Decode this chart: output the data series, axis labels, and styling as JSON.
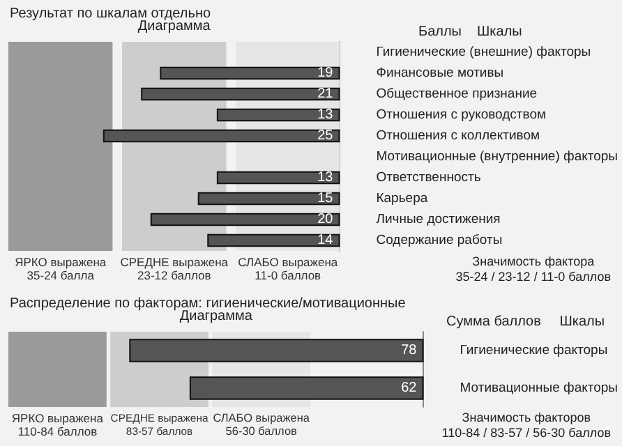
{
  "chart_data": [
    {
      "type": "bar",
      "orientation": "horizontal",
      "title": "Результат по шкалам отдельно",
      "xlabel": "Диаграмма",
      "ylabel": "Шкалы",
      "categories": [
        "Гигиенические (внешние) факторы",
        "Финансовые мотивы",
        "Общественное признание",
        "Отношения с руководством",
        "Отношения с коллективом",
        "Мотивационные (внутренние) факторы",
        "Ответственность",
        "Карьера",
        "Личные достижения",
        "Содержание работы"
      ],
      "values": [
        null,
        19,
        21,
        13,
        25,
        null,
        13,
        15,
        20,
        14
      ],
      "color": "#555555",
      "data_labels": true,
      "xlim": [
        35,
        0
      ],
      "tick_labels": "y",
      "bands": [
        {
          "axis": "x",
          "from": 35,
          "to": 24,
          "label": "ЯРКО выражена\n35-24 балла",
          "color": "#9a9a9a"
        },
        {
          "axis": "x",
          "from": 23,
          "to": 12,
          "label": "СРЕДНЕ выражена\n23-12 баллов",
          "color": "#cdcdcd"
        },
        {
          "axis": "x",
          "from": 11,
          "to": 0,
          "label": "СЛАБО выражена\n11-0 баллов",
          "color": "#e6e6e6"
        }
      ],
      "annotations": [
        "Баллы",
        "Значимость фактора\n35-24 / 23-12 / 11-0 баллов"
      ]
    },
    {
      "type": "bar",
      "orientation": "horizontal",
      "title": "Распределение по факторам: гигиенические/мотивационные",
      "xlabel": "Диаграмма",
      "ylabel": "Шкалы",
      "categories": [
        "Гигиенические факторы",
        "Мотивационные факторы"
      ],
      "values": [
        78,
        62
      ],
      "color": "#555555",
      "data_labels": true,
      "xlim": [
        110,
        0
      ],
      "tick_labels": "y",
      "bands": [
        {
          "axis": "x",
          "from": 110,
          "to": 84,
          "label": "ЯРКО выражена\n110-84 баллов",
          "color": "#9a9a9a"
        },
        {
          "axis": "x",
          "from": 83,
          "to": 57,
          "label": "СРЕДНЕ выражена\n83-57 баллов",
          "color": "#cdcdcd"
        },
        {
          "axis": "x",
          "from": 56,
          "to": 30,
          "label": "СЛАБО выражена\n56-30 баллов",
          "color": "#e6e6e6"
        }
      ],
      "annotations": [
        "Сумма баллов",
        "Значимость факторов\n110-84 / 83-57 / 56-30 баллов"
      ]
    }
  ]
}
